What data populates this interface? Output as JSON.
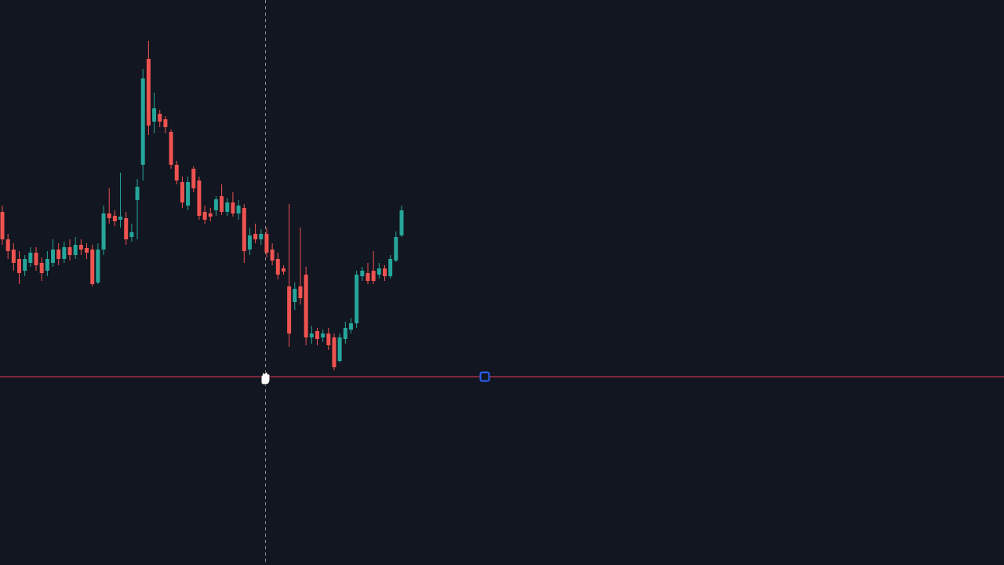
{
  "chart_data": {
    "type": "candlestick",
    "ylim": [
      0,
      720
    ],
    "up_color": "#26a69a",
    "down_color": "#ef5350",
    "open": [
      450,
      415,
      402,
      390,
      375,
      385,
      398,
      385,
      375,
      385,
      402,
      390,
      405,
      395,
      408,
      404,
      402,
      360,
      402,
      448,
      445,
      440,
      442,
      418,
      465,
      510,
      645,
      565,
      575,
      568,
      552,
      510,
      488,
      458,
      505,
      490,
      450,
      448,
      452,
      470,
      450,
      462,
      448,
      455,
      402,
      422,
      415,
      422,
      402,
      390,
      378,
      355,
      335,
      355,
      370,
      290,
      298,
      290,
      295,
      290,
      260,
      288,
      300,
      308,
      368,
      372,
      375,
      370,
      378,
      368,
      388,
      420
    ],
    "close": [
      415,
      400,
      385,
      372,
      390,
      398,
      382,
      372,
      390,
      402,
      390,
      405,
      395,
      408,
      402,
      398,
      358,
      402,
      448,
      442,
      438,
      444,
      415,
      424,
      482,
      620,
      560,
      582,
      565,
      558,
      510,
      490,
      462,
      488,
      480,
      445,
      440,
      444,
      466,
      450,
      462,
      448,
      458,
      400,
      420,
      415,
      422,
      398,
      388,
      370,
      374,
      295,
      352,
      340,
      290,
      295,
      288,
      295,
      280,
      252,
      290,
      302,
      308,
      370,
      375,
      362,
      362,
      378,
      368,
      390,
      418,
      452
    ],
    "high": [
      458,
      422,
      410,
      400,
      395,
      405,
      405,
      392,
      400,
      415,
      410,
      412,
      415,
      418,
      415,
      410,
      408,
      410,
      458,
      480,
      452,
      500,
      450,
      435,
      492,
      632,
      668,
      602,
      580,
      572,
      555,
      515,
      495,
      495,
      508,
      495,
      458,
      455,
      470,
      485,
      468,
      475,
      465,
      460,
      430,
      435,
      428,
      430,
      410,
      398,
      382,
      460,
      360,
      430,
      380,
      305,
      302,
      300,
      302,
      295,
      295,
      310,
      315,
      375,
      380,
      385,
      400,
      385,
      382,
      395,
      425,
      458
    ],
    "low": [
      408,
      390,
      375,
      358,
      368,
      380,
      375,
      362,
      368,
      380,
      382,
      385,
      388,
      390,
      395,
      390,
      355,
      358,
      395,
      435,
      432,
      430,
      408,
      412,
      415,
      490,
      548,
      550,
      558,
      550,
      505,
      485,
      455,
      452,
      475,
      440,
      435,
      438,
      445,
      446,
      445,
      444,
      440,
      385,
      395,
      410,
      408,
      392,
      382,
      364,
      370,
      278,
      325,
      332,
      280,
      282,
      280,
      284,
      274,
      248,
      258,
      282,
      295,
      302,
      362,
      358,
      358,
      365,
      362,
      365,
      386,
      418
    ],
    "hline": {
      "value": 240,
      "color": "#e8395a"
    }
  }
}
